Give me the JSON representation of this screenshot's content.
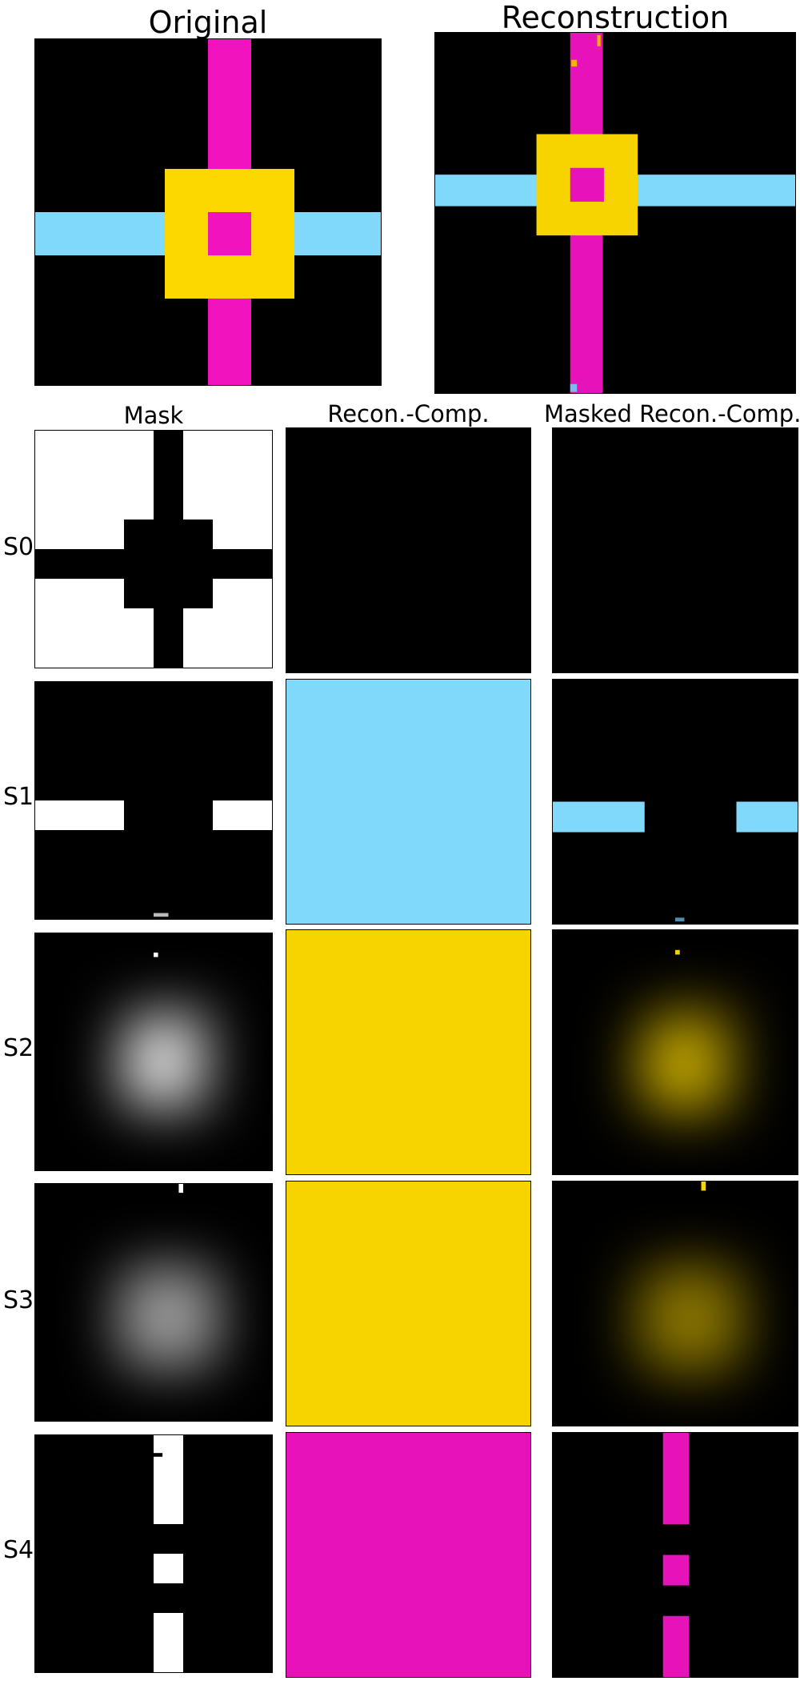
{
  "titles": {
    "original": "Original",
    "reconstruction": "Reconstruction"
  },
  "column_headers": {
    "mask": "Mask",
    "recon_comp": "Recon.-Comp.",
    "masked_recon_comp": "Masked Recon.-Comp."
  },
  "rows": [
    {
      "label": "S0",
      "component_color": "#000000"
    },
    {
      "label": "S1",
      "component_color": "#80d8fa"
    },
    {
      "label": "S2",
      "component_color": "#f7d300"
    },
    {
      "label": "S3",
      "component_color": "#f7d300"
    },
    {
      "label": "S4",
      "component_color": "#e812bb"
    }
  ],
  "colors": {
    "background": "#000000",
    "magenta": "#e812bb",
    "cyan": "#80d8fa",
    "yellow": "#f7d300",
    "mask_white": "#ffffff"
  }
}
